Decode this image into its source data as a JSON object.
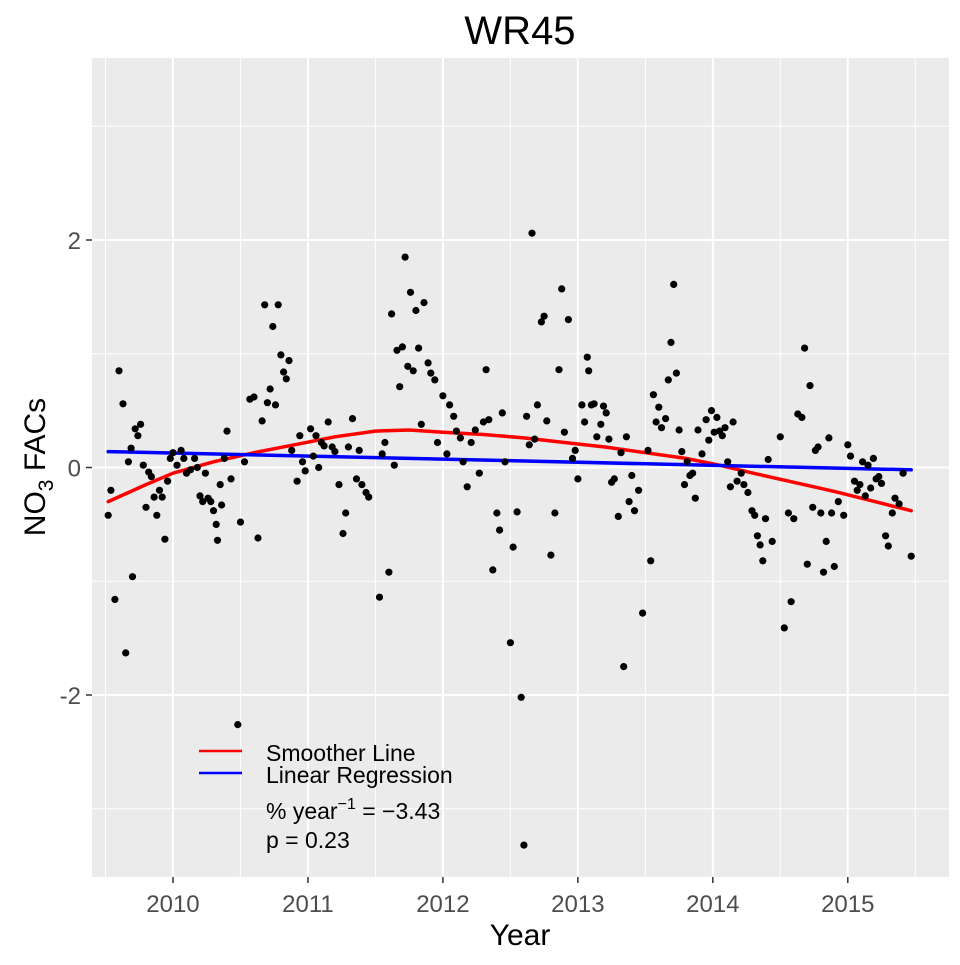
{
  "chart_data": {
    "type": "scatter",
    "title": "WR45",
    "xlabel": "Year",
    "ylabel_main": "NO",
    "ylabel_sub": "3",
    "ylabel_rest": " FACs",
    "xlim": [
      2009.4,
      2015.75
    ],
    "ylim": [
      -3.6,
      3.6
    ],
    "x_ticks": [
      2010,
      2011,
      2012,
      2013,
      2014,
      2015
    ],
    "x_tick_labels": [
      "2010",
      "2011",
      "2012",
      "2013",
      "2014",
      "2015"
    ],
    "y_ticks": [
      -2,
      0,
      2
    ],
    "y_tick_labels": [
      "-2",
      "0",
      "2"
    ],
    "grid": true,
    "legend_position": "bottom-left",
    "colors": {
      "points": "#000000",
      "smoother": "#ff0000",
      "regression": "#0000ff",
      "panel": "#ebebeb",
      "grid": "#ffffff"
    },
    "series": [
      {
        "name": "Smoother Line",
        "kind": "line",
        "color": "#ff0000",
        "x": [
          2009.52,
          2009.8,
          2010.0,
          2010.3,
          2010.6,
          2010.9,
          2011.2,
          2011.5,
          2011.75,
          2012.0,
          2012.3,
          2012.6,
          2012.9,
          2013.2,
          2013.5,
          2013.8,
          2014.05,
          2014.3,
          2014.6,
          2014.9,
          2015.2,
          2015.47
        ],
        "y": [
          -0.3,
          -0.15,
          -0.05,
          0.05,
          0.13,
          0.2,
          0.27,
          0.32,
          0.33,
          0.31,
          0.29,
          0.26,
          0.22,
          0.18,
          0.13,
          0.08,
          0.02,
          -0.05,
          -0.13,
          -0.21,
          -0.3,
          -0.38
        ]
      },
      {
        "name": "Linear Regression",
        "kind": "line",
        "color": "#0000ff",
        "x": [
          2009.52,
          2015.47
        ],
        "y": [
          0.14,
          -0.02
        ]
      },
      {
        "name": "points",
        "kind": "points",
        "color": "#000000",
        "points": [
          [
            2009.52,
            -0.42
          ],
          [
            2009.54,
            -0.2
          ],
          [
            2009.57,
            -1.16
          ],
          [
            2009.6,
            0.85
          ],
          [
            2009.63,
            0.56
          ],
          [
            2009.65,
            -1.63
          ],
          [
            2009.67,
            0.05
          ],
          [
            2009.69,
            0.17
          ],
          [
            2009.7,
            -0.96
          ],
          [
            2009.72,
            0.34
          ],
          [
            2009.74,
            0.28
          ],
          [
            2009.76,
            0.38
          ],
          [
            2009.78,
            0.02
          ],
          [
            2009.8,
            -0.35
          ],
          [
            2009.82,
            -0.04
          ],
          [
            2009.84,
            -0.08
          ],
          [
            2009.86,
            -0.26
          ],
          [
            2009.88,
            -0.42
          ],
          [
            2009.9,
            -0.2
          ],
          [
            2009.92,
            -0.26
          ],
          [
            2009.94,
            -0.63
          ],
          [
            2009.96,
            -0.12
          ],
          [
            2009.98,
            0.08
          ],
          [
            2010.0,
            0.13
          ],
          [
            2010.03,
            0.02
          ],
          [
            2010.06,
            0.15
          ],
          [
            2010.08,
            0.08
          ],
          [
            2010.1,
            -0.05
          ],
          [
            2010.13,
            -0.02
          ],
          [
            2010.16,
            0.08
          ],
          [
            2010.18,
            0.0
          ],
          [
            2010.2,
            -0.25
          ],
          [
            2010.22,
            -0.3
          ],
          [
            2010.24,
            -0.05
          ],
          [
            2010.26,
            -0.27
          ],
          [
            2010.28,
            -0.3
          ],
          [
            2010.3,
            -0.38
          ],
          [
            2010.32,
            -0.5
          ],
          [
            2010.33,
            -0.64
          ],
          [
            2010.35,
            -0.15
          ],
          [
            2010.36,
            -0.33
          ],
          [
            2010.38,
            0.08
          ],
          [
            2010.4,
            0.32
          ],
          [
            2010.43,
            -0.1
          ],
          [
            2010.48,
            -2.26
          ],
          [
            2010.5,
            -0.48
          ],
          [
            2010.53,
            0.05
          ],
          [
            2010.57,
            0.6
          ],
          [
            2010.6,
            0.62
          ],
          [
            2010.63,
            -0.62
          ],
          [
            2010.66,
            0.41
          ],
          [
            2010.68,
            1.43
          ],
          [
            2010.7,
            0.57
          ],
          [
            2010.72,
            0.69
          ],
          [
            2010.74,
            1.24
          ],
          [
            2010.76,
            0.55
          ],
          [
            2010.78,
            1.43
          ],
          [
            2010.8,
            0.99
          ],
          [
            2010.82,
            0.84
          ],
          [
            2010.84,
            0.78
          ],
          [
            2010.86,
            0.94
          ],
          [
            2010.88,
            0.15
          ],
          [
            2010.92,
            -0.12
          ],
          [
            2010.94,
            0.28
          ],
          [
            2010.96,
            0.05
          ],
          [
            2010.98,
            -0.03
          ],
          [
            2011.02,
            0.34
          ],
          [
            2011.04,
            0.1
          ],
          [
            2011.06,
            0.28
          ],
          [
            2011.08,
            0.0
          ],
          [
            2011.1,
            0.22
          ],
          [
            2011.12,
            0.19
          ],
          [
            2011.15,
            0.4
          ],
          [
            2011.18,
            0.18
          ],
          [
            2011.2,
            0.14
          ],
          [
            2011.23,
            -0.15
          ],
          [
            2011.26,
            -0.58
          ],
          [
            2011.28,
            -0.4
          ],
          [
            2011.3,
            0.18
          ],
          [
            2011.33,
            0.43
          ],
          [
            2011.36,
            -0.1
          ],
          [
            2011.38,
            0.15
          ],
          [
            2011.4,
            -0.15
          ],
          [
            2011.43,
            -0.22
          ],
          [
            2011.45,
            -0.26
          ],
          [
            2011.53,
            -1.14
          ],
          [
            2011.55,
            0.12
          ],
          [
            2011.57,
            0.22
          ],
          [
            2011.6,
            -0.92
          ],
          [
            2011.62,
            1.35
          ],
          [
            2011.64,
            0.02
          ],
          [
            2011.66,
            1.03
          ],
          [
            2011.68,
            0.71
          ],
          [
            2011.7,
            1.06
          ],
          [
            2011.72,
            1.85
          ],
          [
            2011.74,
            0.89
          ],
          [
            2011.76,
            1.54
          ],
          [
            2011.78,
            0.85
          ],
          [
            2011.8,
            1.38
          ],
          [
            2011.82,
            1.05
          ],
          [
            2011.84,
            0.38
          ],
          [
            2011.86,
            1.45
          ],
          [
            2011.89,
            0.92
          ],
          [
            2011.91,
            0.83
          ],
          [
            2011.94,
            0.77
          ],
          [
            2011.96,
            0.22
          ],
          [
            2012.0,
            0.63
          ],
          [
            2012.03,
            0.12
          ],
          [
            2012.05,
            0.55
          ],
          [
            2012.08,
            0.45
          ],
          [
            2012.1,
            0.32
          ],
          [
            2012.13,
            0.26
          ],
          [
            2012.15,
            0.05
          ],
          [
            2012.18,
            -0.17
          ],
          [
            2012.21,
            0.22
          ],
          [
            2012.24,
            0.33
          ],
          [
            2012.27,
            -0.05
          ],
          [
            2012.3,
            0.4
          ],
          [
            2012.32,
            0.86
          ],
          [
            2012.34,
            0.42
          ],
          [
            2012.37,
            -0.9
          ],
          [
            2012.4,
            -0.4
          ],
          [
            2012.42,
            -0.55
          ],
          [
            2012.44,
            0.48
          ],
          [
            2012.46,
            0.05
          ],
          [
            2012.5,
            -1.54
          ],
          [
            2012.52,
            -0.7
          ],
          [
            2012.55,
            -0.39
          ],
          [
            2012.58,
            -2.02
          ],
          [
            2012.6,
            -3.32
          ],
          [
            2012.62,
            0.45
          ],
          [
            2012.64,
            0.2
          ],
          [
            2012.66,
            2.06
          ],
          [
            2012.68,
            0.25
          ],
          [
            2012.7,
            0.55
          ],
          [
            2012.73,
            1.28
          ],
          [
            2012.75,
            1.33
          ],
          [
            2012.77,
            0.41
          ],
          [
            2012.8,
            -0.77
          ],
          [
            2012.83,
            -0.4
          ],
          [
            2012.86,
            0.86
          ],
          [
            2012.88,
            1.57
          ],
          [
            2012.9,
            0.31
          ],
          [
            2012.93,
            1.3
          ],
          [
            2012.96,
            0.08
          ],
          [
            2012.98,
            0.15
          ],
          [
            2013.0,
            -0.1
          ],
          [
            2013.03,
            0.55
          ],
          [
            2013.05,
            0.4
          ],
          [
            2013.07,
            0.97
          ],
          [
            2013.08,
            0.85
          ],
          [
            2013.1,
            0.55
          ],
          [
            2013.12,
            0.56
          ],
          [
            2013.14,
            0.27
          ],
          [
            2013.17,
            0.38
          ],
          [
            2013.19,
            0.54
          ],
          [
            2013.21,
            0.48
          ],
          [
            2013.23,
            0.25
          ],
          [
            2013.25,
            -0.13
          ],
          [
            2013.27,
            -0.1
          ],
          [
            2013.3,
            -0.43
          ],
          [
            2013.32,
            0.13
          ],
          [
            2013.34,
            -1.75
          ],
          [
            2013.36,
            0.27
          ],
          [
            2013.38,
            -0.3
          ],
          [
            2013.4,
            -0.07
          ],
          [
            2013.42,
            -0.38
          ],
          [
            2013.45,
            -0.2
          ],
          [
            2013.48,
            -1.28
          ],
          [
            2013.52,
            0.15
          ],
          [
            2013.54,
            -0.82
          ],
          [
            2013.56,
            0.64
          ],
          [
            2013.58,
            0.4
          ],
          [
            2013.6,
            0.53
          ],
          [
            2013.62,
            0.35
          ],
          [
            2013.65,
            0.43
          ],
          [
            2013.67,
            0.77
          ],
          [
            2013.69,
            1.1
          ],
          [
            2013.71,
            1.61
          ],
          [
            2013.73,
            0.83
          ],
          [
            2013.75,
            0.33
          ],
          [
            2013.77,
            0.14
          ],
          [
            2013.79,
            -0.15
          ],
          [
            2013.81,
            0.05
          ],
          [
            2013.83,
            -0.07
          ],
          [
            2013.85,
            -0.05
          ],
          [
            2013.87,
            -0.27
          ],
          [
            2013.89,
            0.33
          ],
          [
            2013.92,
            0.12
          ],
          [
            2013.95,
            0.42
          ],
          [
            2013.97,
            0.24
          ],
          [
            2013.99,
            0.5
          ],
          [
            2014.01,
            0.31
          ],
          [
            2014.03,
            0.44
          ],
          [
            2014.05,
            0.32
          ],
          [
            2014.07,
            0.28
          ],
          [
            2014.09,
            0.35
          ],
          [
            2014.11,
            0.05
          ],
          [
            2014.13,
            -0.17
          ],
          [
            2014.15,
            0.4
          ],
          [
            2014.18,
            -0.12
          ],
          [
            2014.21,
            -0.05
          ],
          [
            2014.23,
            -0.15
          ],
          [
            2014.26,
            -0.22
          ],
          [
            2014.29,
            -0.38
          ],
          [
            2014.31,
            -0.42
          ],
          [
            2014.33,
            -0.6
          ],
          [
            2014.35,
            -0.68
          ],
          [
            2014.37,
            -0.82
          ],
          [
            2014.39,
            -0.45
          ],
          [
            2014.41,
            0.07
          ],
          [
            2014.44,
            -0.65
          ],
          [
            2014.5,
            0.27
          ],
          [
            2014.53,
            -1.41
          ],
          [
            2014.56,
            -0.4
          ],
          [
            2014.58,
            -1.18
          ],
          [
            2014.6,
            -0.45
          ],
          [
            2014.63,
            0.47
          ],
          [
            2014.66,
            0.44
          ],
          [
            2014.68,
            1.05
          ],
          [
            2014.7,
            -0.85
          ],
          [
            2014.72,
            0.72
          ],
          [
            2014.74,
            -0.35
          ],
          [
            2014.76,
            0.15
          ],
          [
            2014.78,
            0.18
          ],
          [
            2014.8,
            -0.4
          ],
          [
            2014.82,
            -0.92
          ],
          [
            2014.84,
            -0.65
          ],
          [
            2014.86,
            0.26
          ],
          [
            2014.88,
            -0.4
          ],
          [
            2014.9,
            -0.87
          ],
          [
            2014.93,
            -0.3
          ],
          [
            2014.97,
            -0.42
          ],
          [
            2015.0,
            0.2
          ],
          [
            2015.02,
            0.1
          ],
          [
            2015.05,
            -0.12
          ],
          [
            2015.07,
            -0.2
          ],
          [
            2015.09,
            -0.15
          ],
          [
            2015.11,
            0.05
          ],
          [
            2015.13,
            -0.25
          ],
          [
            2015.15,
            0.02
          ],
          [
            2015.17,
            -0.18
          ],
          [
            2015.19,
            0.08
          ],
          [
            2015.21,
            -0.1
          ],
          [
            2015.23,
            -0.08
          ],
          [
            2015.25,
            -0.14
          ],
          [
            2015.28,
            -0.6
          ],
          [
            2015.3,
            -0.69
          ],
          [
            2015.33,
            -0.4
          ],
          [
            2015.35,
            -0.27
          ],
          [
            2015.38,
            -0.32
          ],
          [
            2015.41,
            -0.05
          ],
          [
            2015.47,
            -0.78
          ]
        ]
      }
    ],
    "legend": {
      "entries": [
        {
          "label": "Smoother Line",
          "color": "#ff0000"
        },
        {
          "label": "Linear Regression",
          "color": "#0000ff"
        }
      ],
      "annotation_line1_prefix": "% year",
      "annotation_line1_exp": "−1",
      "annotation_line1_suffix": " = −3.43",
      "annotation_line2": "p = 0.23"
    }
  }
}
